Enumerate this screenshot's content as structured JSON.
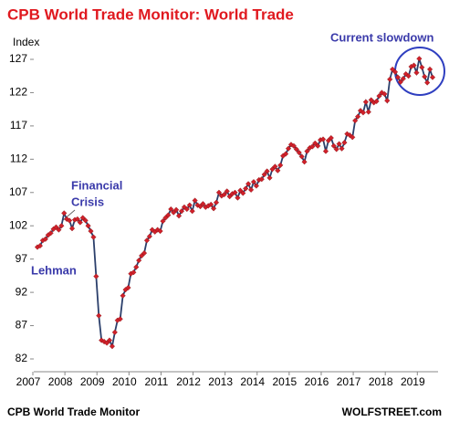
{
  "chart_data": {
    "type": "line",
    "title": "CPB World Trade Monitor: World Trade",
    "y_label": "Index",
    "annotations": {
      "slowdown": "Current slowdown",
      "crisis_line1": "Financial",
      "crisis_line2": "Crisis",
      "lehman": "Lehman"
    },
    "footer_left": "CPB World Trade Monitor",
    "footer_right": "WOLFSTREET.com",
    "categories": [
      "2007",
      null,
      null,
      null,
      null,
      null,
      null,
      null,
      null,
      null,
      null,
      null,
      "2008",
      null,
      null,
      null,
      null,
      null,
      null,
      null,
      null,
      null,
      null,
      null,
      "2009",
      null,
      null,
      null,
      null,
      null,
      null,
      null,
      null,
      null,
      null,
      null,
      "2010",
      null,
      null,
      null,
      null,
      null,
      null,
      null,
      null,
      null,
      null,
      null,
      "2011",
      null,
      null,
      null,
      null,
      null,
      null,
      null,
      null,
      null,
      null,
      null,
      "2012",
      null,
      null,
      null,
      null,
      null,
      null,
      null,
      null,
      null,
      null,
      null,
      "2013",
      null,
      null,
      null,
      null,
      null,
      null,
      null,
      null,
      null,
      null,
      null,
      "2014",
      null,
      null,
      null,
      null,
      null,
      null,
      null,
      null,
      null,
      null,
      null,
      "2015",
      null,
      null,
      null,
      null,
      null,
      null,
      null,
      null,
      null,
      null,
      null,
      "2016",
      null,
      null,
      null,
      null,
      null,
      null,
      null,
      null,
      null,
      null,
      null,
      "2017",
      null,
      null,
      null,
      null,
      null,
      null,
      null,
      null,
      null,
      null,
      null,
      "2018",
      null,
      null,
      null,
      null,
      null,
      null,
      null,
      null,
      null,
      null,
      null,
      "2019",
      null,
      null,
      null,
      null
    ],
    "series": [
      {
        "name": "World Trade",
        "color": "#2b3f6b",
        "marker_color": "#d0202a",
        "values": [
          98.8,
          99.0,
          99.8,
          100.0,
          100.6,
          100.9,
          101.5,
          101.8,
          101.4,
          102.0,
          103.9,
          103.0,
          102.8,
          101.6,
          102.9,
          103.0,
          102.5,
          103.2,
          102.8,
          102.0,
          101.2,
          100.3,
          94.4,
          88.5,
          84.8,
          84.6,
          84.4,
          84.8,
          83.9,
          86.0,
          87.8,
          88.0,
          91.5,
          92.4,
          92.7,
          94.8,
          95.0,
          95.8,
          96.8,
          97.5,
          97.9,
          99.8,
          100.4,
          101.4,
          101.1,
          101.4,
          101.2,
          102.7,
          103.2,
          103.6,
          104.5,
          104.0,
          104.4,
          103.5,
          104.2,
          104.8,
          104.5,
          105.1,
          104.2,
          105.8,
          105.1,
          104.9,
          105.3,
          104.8,
          105.0,
          105.2,
          104.6,
          105.5,
          107.0,
          106.5,
          106.7,
          107.2,
          106.4,
          106.8,
          107.0,
          106.2,
          107.3,
          106.9,
          107.6,
          108.3,
          107.4,
          108.6,
          108.0,
          108.9,
          109.0,
          109.7,
          110.2,
          109.2,
          110.5,
          110.9,
          110.3,
          111.1,
          112.5,
          112.8,
          113.6,
          114.2,
          114.0,
          113.5,
          113.0,
          112.4,
          111.6,
          113.2,
          113.7,
          113.9,
          114.4,
          114.0,
          114.9,
          115.0,
          113.2,
          114.8,
          115.2,
          114.0,
          113.5,
          114.3,
          113.6,
          114.5,
          115.8,
          115.6,
          115.3,
          117.8,
          118.4,
          119.3,
          119.0,
          120.6,
          119.1,
          120.9,
          120.5,
          120.7,
          121.5,
          122.0,
          121.8,
          120.8,
          124.0,
          125.5,
          125.1,
          124.3,
          123.6,
          124.1,
          124.8,
          124.5,
          125.9,
          126.1,
          125.0,
          127.1,
          125.8,
          124.4,
          123.5,
          125.5,
          124.3
        ]
      }
    ],
    "ylim": [
      82,
      127
    ],
    "yticks": [
      82,
      87,
      92,
      97,
      102,
      107,
      112,
      117,
      122,
      127
    ],
    "grid": false
  }
}
